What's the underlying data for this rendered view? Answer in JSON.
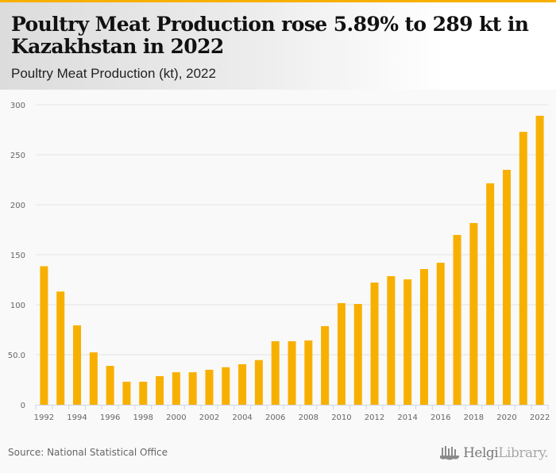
{
  "header": {
    "title": "Poultry Meat Production rose 5.89% to 289 kt in Kazakhstan in 2022",
    "subtitle": "Poultry Meat Production (kt), 2022"
  },
  "footer": {
    "source": "Source: National Statistical Office",
    "logo_part1": "Helgi",
    "logo_part2": "Library."
  },
  "colors": {
    "accent": "#f8b000",
    "bar": "#f8b000",
    "grid": "#e2e2e2",
    "axis": "#ccd6eb"
  },
  "chart_data": {
    "type": "bar",
    "title": "Poultry Meat Production rose 5.89% to 289 kt in Kazakhstan in 2022",
    "subtitle": "Poultry Meat Production (kt), 2022",
    "xlabel": "",
    "ylabel": "",
    "ylim": [
      0,
      300
    ],
    "grid": true,
    "legend": "none",
    "yticks": [
      0,
      50,
      100,
      150,
      200,
      250,
      300
    ],
    "ytick_labels": [
      "0",
      "50.0",
      "100",
      "150",
      "200",
      "250",
      "300"
    ],
    "categories": [
      "1992",
      "1993",
      "1994",
      "1995",
      "1996",
      "1997",
      "1998",
      "1999",
      "2000",
      "2001",
      "2002",
      "2003",
      "2004",
      "2005",
      "2006",
      "2007",
      "2008",
      "2009",
      "2010",
      "2011",
      "2012",
      "2013",
      "2014",
      "2015",
      "2016",
      "2017",
      "2018",
      "2019",
      "2020",
      "2021",
      "2022"
    ],
    "xtick_labels": [
      "1992",
      "1994",
      "1996",
      "1998",
      "2000",
      "2002",
      "2004",
      "2006",
      "2008",
      "2010",
      "2012",
      "2014",
      "2016",
      "2018",
      "2020",
      "2022"
    ],
    "series": [
      {
        "name": "Poultry Meat Production (kt)",
        "values": [
          138.5,
          113.2,
          79.4,
          52.4,
          38.9,
          23.0,
          23.0,
          28.6,
          32.5,
          32.5,
          35.0,
          37.5,
          40.5,
          44.7,
          63.5,
          63.5,
          64.3,
          78.6,
          101.6,
          100.8,
          122.2,
          128.6,
          125.4,
          135.7,
          142.0,
          169.8,
          181.7,
          221.4,
          234.9,
          272.9,
          289.0
        ]
      }
    ]
  }
}
